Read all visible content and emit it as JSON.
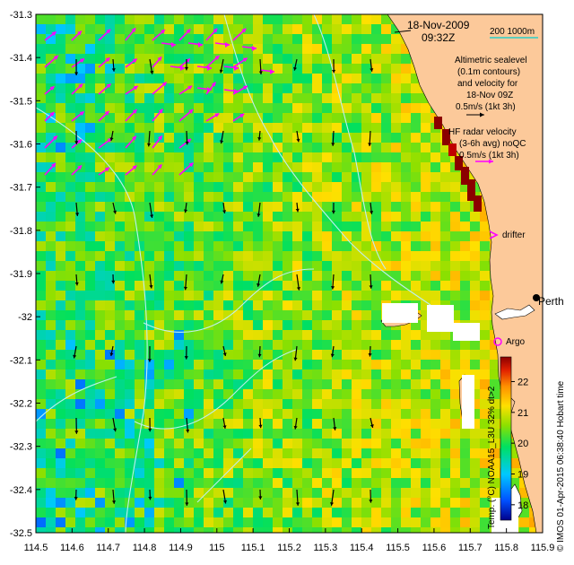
{
  "map": {
    "date": "18-Nov-2009",
    "time": "09:32Z",
    "scale_bar": "200  1000m",
    "altimetric": [
      "Altimetric sealevel",
      "(0.1m contours)",
      "and velocity for",
      "18-Nov 09Z",
      "0.5m/s (1kt 3h)"
    ],
    "hf_radar": [
      "HF radar velocity",
      "(3-6h avg) noQC",
      "0.5m/s (1kt 3h)"
    ],
    "drifter_label": "drifter",
    "argo_label": "Argo",
    "city_label": "Perth",
    "credit": "© IMOS 01-Apr-2015 06:38:40 Hobart time",
    "lon_ticks": [
      "114.5",
      "114.6",
      "114.7",
      "114.8",
      "114.9",
      "115",
      "115.1",
      "115.2",
      "115.3",
      "115.4",
      "115.5",
      "115.6",
      "115.7",
      "115.8",
      "115.9"
    ],
    "lat_ticks": [
      "-31.3",
      "-31.4",
      "-31.5",
      "-31.6",
      "-31.7",
      "-31.8",
      "-31.9",
      "-32",
      "-32.1",
      "-32.2",
      "-32.3",
      "-32.4",
      "-32.5"
    ]
  },
  "colorbar": {
    "label": "Temp. (°C) NOAA15_L3U 32% dt>2",
    "ticks": [
      "18",
      "19",
      "20",
      "21",
      "22"
    ],
    "min": 17.5,
    "max": 22.8
  },
  "colors": {
    "land": "#fcc99a",
    "hf_arrow": "#ff00ff",
    "altimetry_arrow": "#000000",
    "contour": "#bff0ef",
    "missing": "#ffffff"
  }
}
